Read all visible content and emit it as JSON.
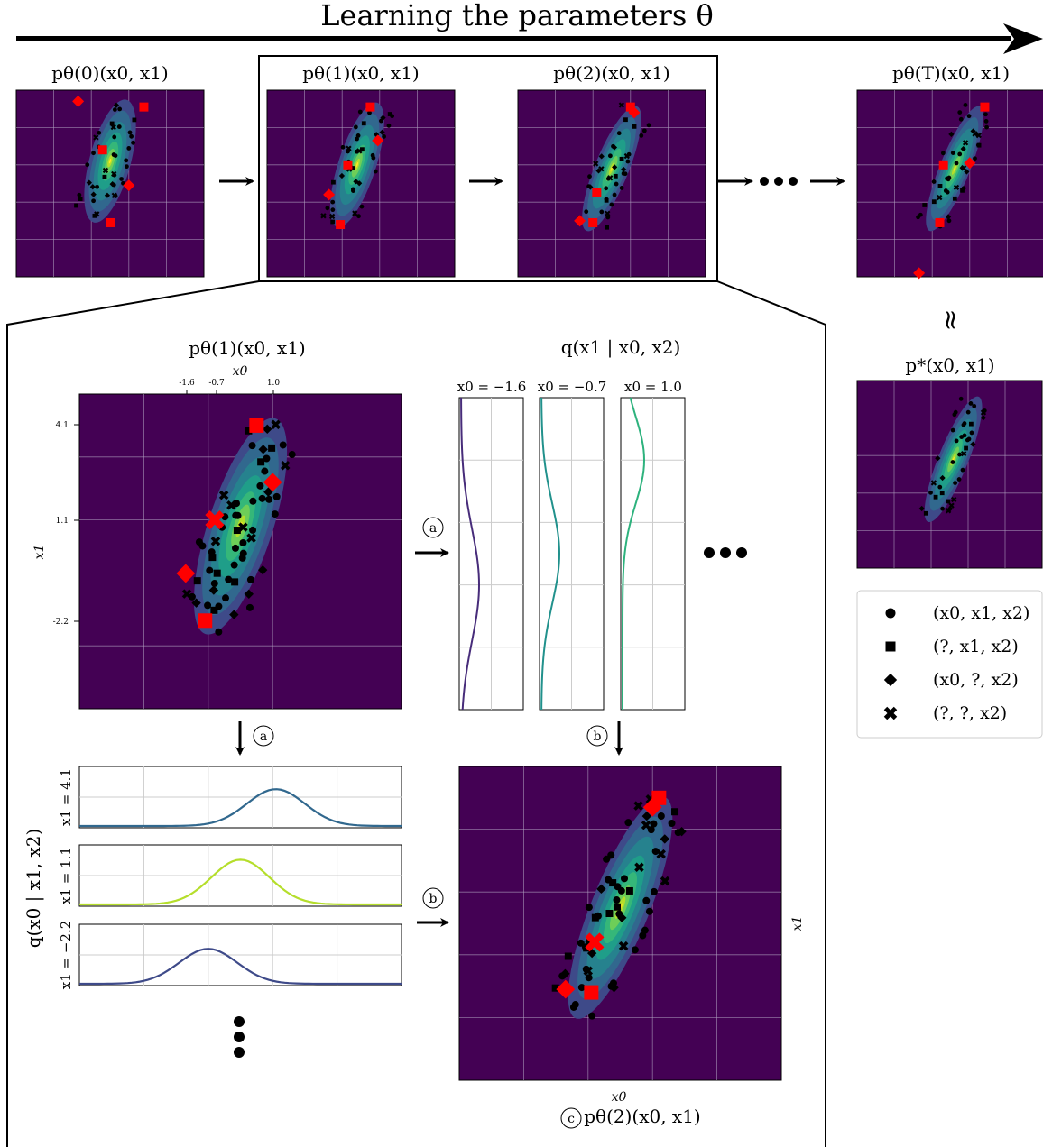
{
  "header": {
    "title": "Learning the parameters θ"
  },
  "top_plots": [
    {
      "label": "pθ(0)(x0, x1)",
      "base": "p",
      "sub": "θ",
      "supsub": "(0)",
      "args": "(x0, x1)"
    },
    {
      "label": "pθ(1)(x0, x1)",
      "base": "p",
      "sub": "θ",
      "supsub": "(1)",
      "args": "(x0, x1)"
    },
    {
      "label": "pθ(2)(x0, x1)",
      "base": "p",
      "sub": "θ",
      "supsub": "(2)",
      "args": "(x0, x1)"
    },
    {
      "label": "pθ(T)(x0, x1)",
      "base": "p",
      "sub": "θ",
      "supsub": "(T)",
      "args": "(x0, x1)"
    }
  ],
  "target": {
    "label": "p*(x0, x1)",
    "approx_symbol": "≈"
  },
  "zoom": {
    "main_title": "pθ(1)(x0, x1)",
    "x_axis_label": "x0",
    "y_axis_label": "x1",
    "x_ticks": [
      "-1.6",
      "-0.7",
      "1.0"
    ],
    "y_ticks": [
      "4.1",
      "1.1",
      "-2.2"
    ],
    "cond_x_title": "q(x1 | x0, x2)",
    "cond_x_panels": [
      "x0 = −1.6",
      "x0 = −0.7",
      "x0 = 1.0"
    ],
    "cond_y_title": "q(x0 | x1, x2)",
    "cond_y_panels": [
      "x1 = 4.1",
      "x1 = 1.1",
      "x1 = −2.2"
    ],
    "step_a": "a",
    "step_b": "b",
    "step_c": "c",
    "result_x_label": "x0",
    "result_y_label": "x1",
    "result_caption": "pθ(2)(x0, x1)"
  },
  "legend": {
    "items": [
      {
        "marker": "circle",
        "label": "(x0, x1, x2)"
      },
      {
        "marker": "square",
        "label": "(?, x1, x2)"
      },
      {
        "marker": "diamond",
        "label": "(x0, ?, x2)"
      },
      {
        "marker": "cross",
        "label": "(?, ?, x2)"
      }
    ]
  },
  "colors": {
    "bg": "#440154",
    "mid": "#21918c",
    "high": "#5ec962",
    "peak": "#fde725",
    "missing": "#ff0000",
    "grid": "#b0a0c0"
  }
}
